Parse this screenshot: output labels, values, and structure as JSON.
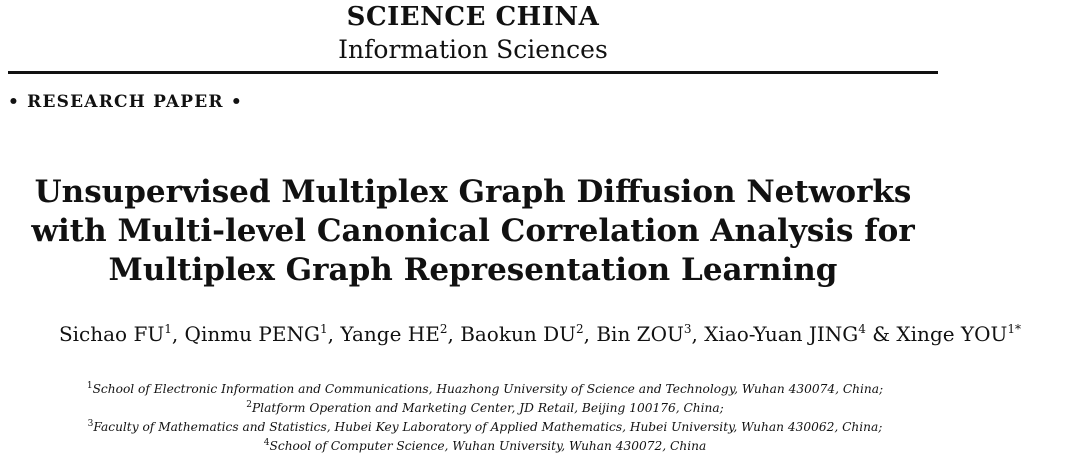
{
  "header": {
    "journal": "SCIENCE CHINA",
    "section": "Information Sciences",
    "paper_type": "• RESEARCH PAPER •"
  },
  "title_lines": [
    "Unsupervised Multiplex Graph Diffusion Networks",
    "with Multi-level Canonical Correlation Analysis for",
    "Multiplex Graph Representation Learning"
  ],
  "authors": [
    {
      "name": "Sichao FU",
      "sup": "1",
      "sep": ", "
    },
    {
      "name": "Qinmu PENG",
      "sup": "1",
      "sep": ", "
    },
    {
      "name": "Yange HE",
      "sup": "2",
      "sep": ", "
    },
    {
      "name": "Baokun DU",
      "sup": "2",
      "sep": ", "
    },
    {
      "name": "Bin ZOU",
      "sup": "3",
      "sep": ", "
    },
    {
      "name": "Xiao-Yuan JING",
      "sup": "4",
      "sep": " & "
    },
    {
      "name": "Xinge YOU",
      "sup": "1*",
      "sep": ""
    }
  ],
  "affiliations": [
    {
      "num": "1",
      "text": "School of Electronic Information and Communications, Huazhong University of Science and Technology, Wuhan 430074, China;"
    },
    {
      "num": "2",
      "text": "Platform Operation and Marketing Center, JD Retail, Beijing 100176, China;"
    },
    {
      "num": "3",
      "text": "Faculty of Mathematics and Statistics, Hubei Key Laboratory of Applied Mathematics, Hubei University, Wuhan 430062, China;"
    },
    {
      "num": "4",
      "text": "School of Computer Science, Wuhan University, Wuhan 430072, China"
    }
  ]
}
